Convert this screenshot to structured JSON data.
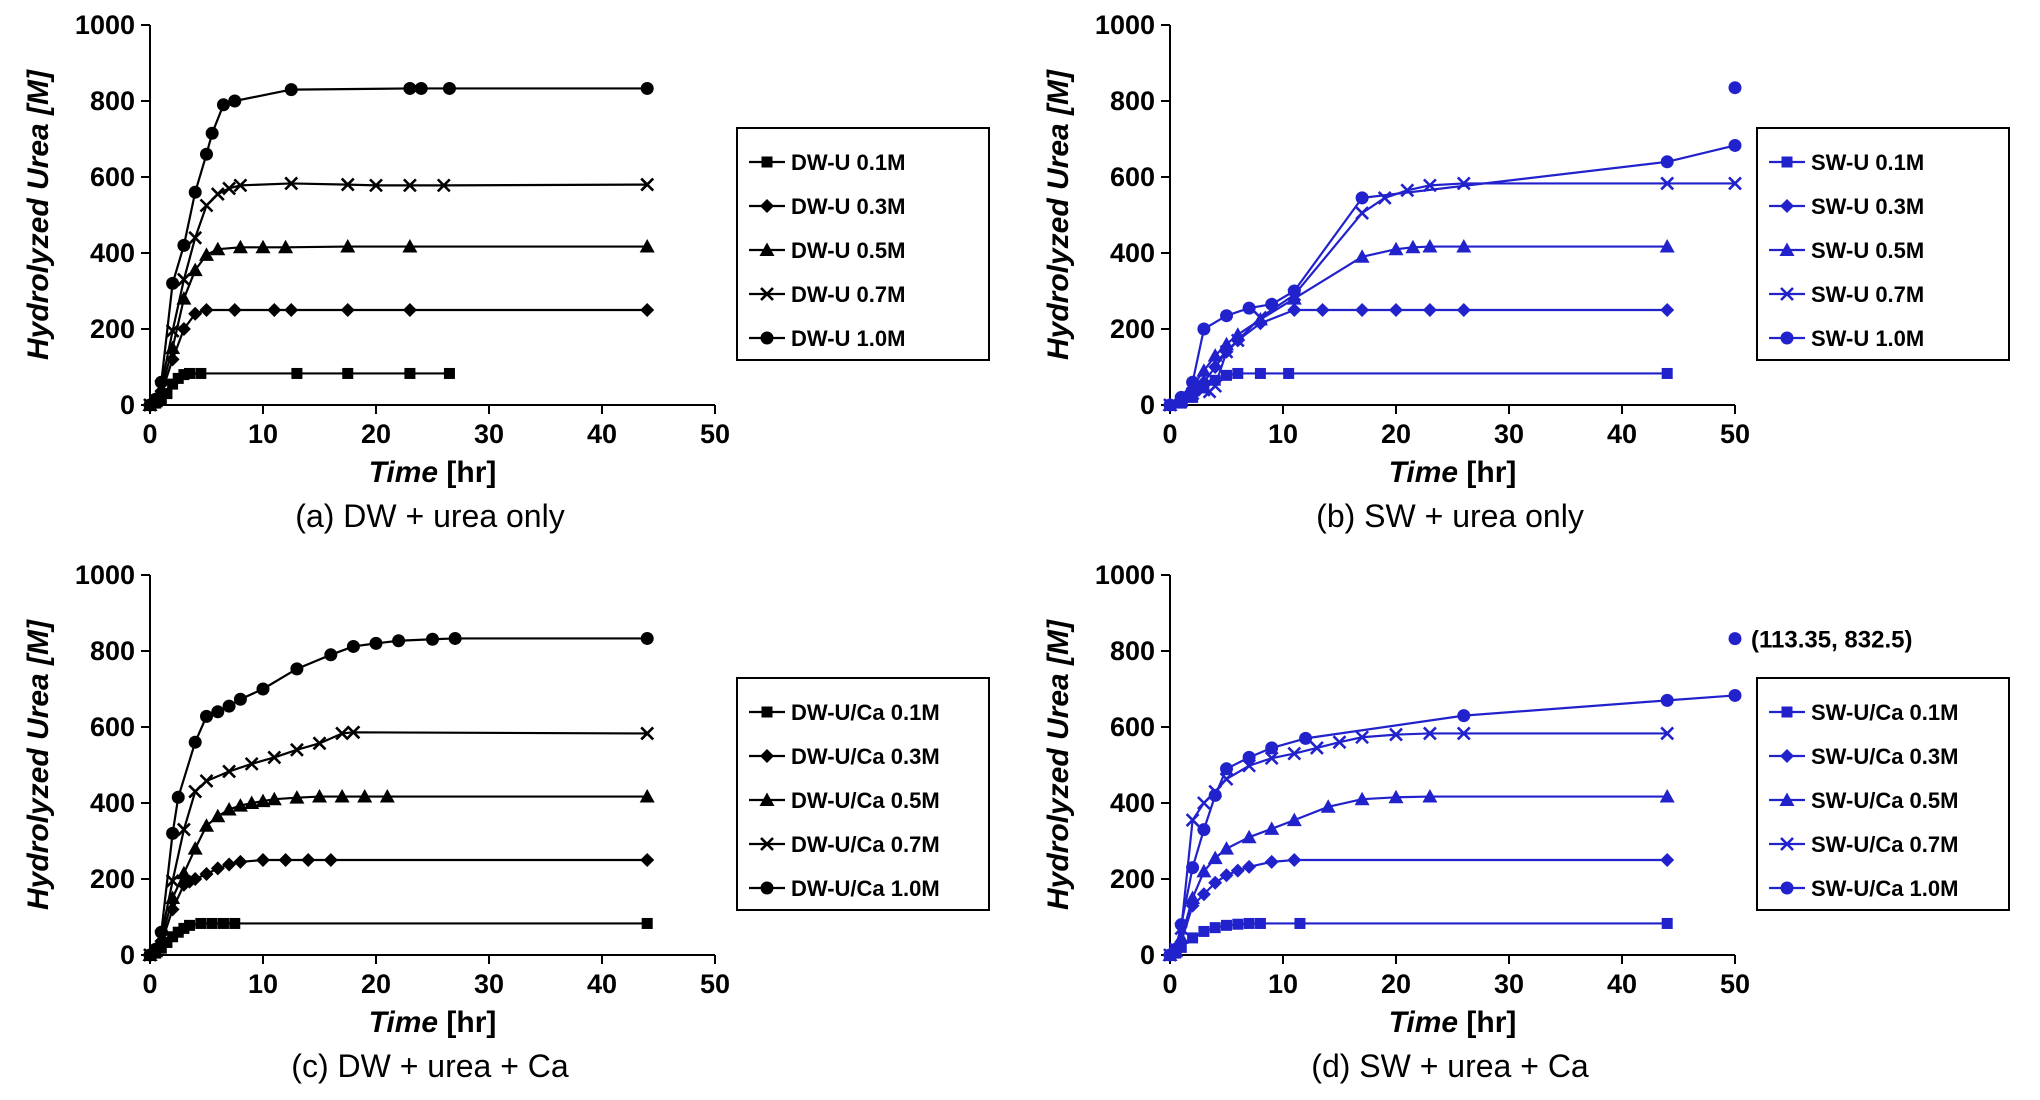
{
  "chart_data": [
    {
      "id": "a",
      "type": "line",
      "caption": "(a)  DW + urea only",
      "color": "#000000",
      "ylabel": "Hydrolyzed Urea [M]",
      "xlabel": {
        "italic": "Time",
        "rest": " [hr]"
      },
      "xlim": [
        0,
        50
      ],
      "ylim": [
        0,
        1000
      ],
      "xticks": [
        0,
        10,
        20,
        30,
        40,
        50
      ],
      "yticks": [
        0,
        200,
        400,
        600,
        800,
        1000
      ],
      "series": [
        {
          "name": "DW-U 0.1M",
          "marker": "square",
          "x": [
            0,
            0.5,
            1,
            1.5,
            2,
            2.5,
            3,
            3.5,
            4.5,
            13,
            17.5,
            23,
            26.5
          ],
          "y": [
            0,
            5,
            15,
            30,
            55,
            70,
            80,
            83,
            83,
            83,
            83,
            83,
            83
          ]
        },
        {
          "name": "DW-U 0.3M",
          "marker": "diamond",
          "x": [
            0,
            0.5,
            1,
            2,
            3,
            4,
            5,
            7.5,
            11,
            12.5,
            17.5,
            23,
            44
          ],
          "y": [
            0,
            8,
            30,
            120,
            200,
            240,
            250,
            250,
            250,
            250,
            250,
            250,
            250
          ]
        },
        {
          "name": "DW-U 0.5M",
          "marker": "triangle",
          "x": [
            0,
            0.5,
            1,
            2,
            3,
            4,
            5,
            6,
            8,
            10,
            12,
            17.5,
            23,
            44
          ],
          "y": [
            0,
            10,
            40,
            150,
            280,
            355,
            395,
            410,
            415,
            415,
            415,
            417,
            417,
            417
          ]
        },
        {
          "name": "DW-U 0.7M",
          "marker": "x",
          "x": [
            0,
            0.5,
            1,
            2,
            3,
            4,
            5,
            6,
            7,
            8,
            12.5,
            17.5,
            20,
            23,
            26,
            44
          ],
          "y": [
            0,
            12,
            50,
            195,
            330,
            440,
            525,
            555,
            570,
            578,
            583,
            580,
            578,
            578,
            578,
            580
          ]
        },
        {
          "name": "DW-U 1.0M",
          "marker": "circle",
          "x": [
            0,
            0.5,
            1,
            2,
            3,
            4,
            5,
            5.5,
            6.5,
            7.5,
            12.5,
            23,
            24,
            26.5,
            44
          ],
          "y": [
            0,
            15,
            60,
            320,
            420,
            560,
            660,
            715,
            790,
            800,
            830,
            833,
            833,
            833,
            833
          ]
        }
      ]
    },
    {
      "id": "b",
      "type": "line",
      "caption": "(b)  SW + urea only",
      "color": "#2222cc",
      "ylabel": "Hydrolyzed Urea [M]",
      "xlabel": {
        "italic": "Time",
        "rest": " [hr]"
      },
      "xlim": [
        0,
        50
      ],
      "ylim": [
        0,
        1000
      ],
      "xticks": [
        0,
        10,
        20,
        30,
        40,
        50
      ],
      "yticks": [
        0,
        200,
        400,
        600,
        800,
        1000
      ],
      "series": [
        {
          "name": "SW-U 0.1M",
          "marker": "square",
          "x": [
            0,
            1,
            2,
            3,
            4,
            5,
            6,
            8,
            10.5,
            44
          ],
          "y": [
            0,
            5,
            20,
            45,
            65,
            78,
            83,
            83,
            83,
            83
          ]
        },
        {
          "name": "SW-U 0.3M",
          "marker": "diamond",
          "x": [
            0,
            1,
            2,
            3,
            4,
            5,
            6,
            8,
            11,
            13.5,
            17,
            20,
            23,
            26,
            44
          ],
          "y": [
            0,
            10,
            35,
            60,
            100,
            140,
            170,
            215,
            250,
            250,
            250,
            250,
            250,
            250,
            250
          ]
        },
        {
          "name": "SW-U 0.5M",
          "marker": "triangle",
          "x": [
            0,
            1,
            2,
            3,
            4,
            5,
            6,
            8,
            11,
            17,
            20,
            21.5,
            23,
            26,
            44
          ],
          "y": [
            0,
            15,
            50,
            90,
            130,
            160,
            185,
            225,
            280,
            390,
            410,
            415,
            417,
            417,
            417
          ]
        },
        {
          "name": "SW-U 0.7M",
          "marker": "x",
          "x": [
            0,
            1,
            2,
            3,
            3.5,
            4,
            5,
            6,
            8,
            11,
            17,
            19,
            21,
            23,
            26,
            44,
            50
          ],
          "y": [
            0,
            10,
            30,
            40,
            35,
            50,
            140,
            170,
            230,
            290,
            505,
            545,
            565,
            578,
            583,
            583,
            583
          ]
        },
        {
          "name": "SW-U 1.0M",
          "marker": "circle",
          "x": [
            0,
            1,
            2,
            3,
            5,
            7,
            9,
            11,
            17,
            44,
            50
          ],
          "y": [
            0,
            20,
            60,
            200,
            235,
            255,
            265,
            300,
            545,
            640,
            683
          ]
        }
      ],
      "extra_points": [
        {
          "x": 50,
          "y": 835,
          "marker": "circle"
        }
      ]
    },
    {
      "id": "c",
      "type": "line",
      "caption": "(c)  DW + urea + Ca",
      "color": "#000000",
      "ylabel": "Hydrolyzed Urea [M]",
      "xlabel": {
        "italic": "Time",
        "rest": " [hr]"
      },
      "xlim": [
        0,
        50
      ],
      "ylim": [
        0,
        1000
      ],
      "xticks": [
        0,
        10,
        20,
        30,
        40,
        50
      ],
      "yticks": [
        0,
        200,
        400,
        600,
        800,
        1000
      ],
      "series": [
        {
          "name": "DW-U/Ca 0.1M",
          "marker": "square",
          "x": [
            0,
            0.5,
            1,
            1.5,
            2,
            2.5,
            3,
            3.5,
            4.5,
            5.5,
            6.5,
            7.5,
            44
          ],
          "y": [
            0,
            5,
            18,
            33,
            48,
            60,
            70,
            78,
            83,
            83,
            83,
            83,
            83
          ]
        },
        {
          "name": "DW-U/Ca 0.3M",
          "marker": "diamond",
          "x": [
            0,
            0.5,
            1,
            2,
            3,
            3.5,
            4,
            5,
            6,
            7,
            8,
            10,
            12,
            14,
            16,
            44
          ],
          "y": [
            0,
            8,
            30,
            120,
            185,
            193,
            200,
            213,
            228,
            238,
            245,
            250,
            250,
            250,
            250,
            250
          ]
        },
        {
          "name": "DW-U/Ca 0.5M",
          "marker": "triangle",
          "x": [
            0,
            0.5,
            1,
            2,
            3,
            4,
            5,
            6,
            7,
            8,
            9,
            10,
            11,
            13,
            15,
            17,
            19,
            21,
            44
          ],
          "y": [
            0,
            10,
            40,
            150,
            215,
            280,
            340,
            365,
            383,
            393,
            400,
            405,
            410,
            414,
            417,
            417,
            417,
            417,
            417
          ]
        },
        {
          "name": "DW-U/Ca 0.7M",
          "marker": "x",
          "x": [
            0,
            0.5,
            1,
            2,
            3,
            4,
            5,
            7,
            9,
            11,
            13,
            15,
            17,
            18,
            44
          ],
          "y": [
            0,
            12,
            50,
            195,
            330,
            430,
            458,
            483,
            503,
            520,
            540,
            557,
            583,
            586,
            583
          ]
        },
        {
          "name": "DW-U/Ca 1.0M",
          "marker": "circle",
          "x": [
            0,
            0.5,
            1,
            2,
            2.5,
            4,
            5,
            6,
            7,
            8,
            10,
            13,
            16,
            18,
            20,
            22,
            25,
            27,
            44
          ],
          "y": [
            0,
            15,
            60,
            320,
            415,
            560,
            628,
            640,
            655,
            673,
            700,
            753,
            790,
            812,
            820,
            827,
            831,
            833,
            833
          ]
        }
      ]
    },
    {
      "id": "d",
      "type": "line",
      "caption": "(d)  SW + urea + Ca",
      "color": "#2222cc",
      "ylabel": "Hydrolyzed Urea [M]",
      "xlabel": {
        "italic": "Time",
        "rest": " [hr]"
      },
      "xlim": [
        0,
        50
      ],
      "ylim": [
        0,
        1000
      ],
      "xticks": [
        0,
        10,
        20,
        30,
        40,
        50
      ],
      "yticks": [
        0,
        200,
        400,
        600,
        800,
        1000
      ],
      "series": [
        {
          "name": "SW-U/Ca 0.1M",
          "marker": "square",
          "x": [
            0,
            0.5,
            1,
            2,
            3,
            4,
            5,
            6,
            7,
            8,
            11.5,
            44
          ],
          "y": [
            0,
            5,
            20,
            45,
            62,
            72,
            78,
            81,
            83,
            83,
            83,
            83
          ]
        },
        {
          "name": "SW-U/Ca 0.3M",
          "marker": "diamond",
          "x": [
            0,
            0.5,
            1,
            2,
            3,
            4,
            5,
            6,
            7,
            9,
            11,
            44
          ],
          "y": [
            0,
            8,
            35,
            130,
            160,
            190,
            210,
            222,
            232,
            245,
            250,
            250
          ]
        },
        {
          "name": "SW-U/Ca 0.5M",
          "marker": "triangle",
          "x": [
            0,
            0.5,
            1,
            2,
            3,
            4,
            5,
            7,
            9,
            11,
            14,
            17,
            20,
            23,
            44
          ],
          "y": [
            0,
            10,
            45,
            150,
            220,
            255,
            280,
            310,
            332,
            355,
            390,
            410,
            415,
            417,
            417
          ]
        },
        {
          "name": "SW-U/Ca 0.7M",
          "marker": "x",
          "x": [
            0,
            0.5,
            1,
            2,
            3,
            4,
            5,
            7,
            9,
            11,
            13,
            15,
            17,
            20,
            23,
            26,
            44
          ],
          "y": [
            0,
            15,
            70,
            355,
            400,
            430,
            463,
            498,
            518,
            530,
            545,
            560,
            573,
            580,
            583,
            583,
            583
          ]
        },
        {
          "name": "SW-U/Ca 1.0M",
          "marker": "circle",
          "x": [
            0,
            0.5,
            1,
            2,
            3,
            4,
            5,
            7,
            9,
            12,
            26,
            44,
            50
          ],
          "y": [
            0,
            15,
            80,
            230,
            330,
            420,
            490,
            520,
            545,
            570,
            630,
            670,
            683
          ]
        }
      ],
      "extra_points": [
        {
          "x": 50,
          "y": 832.5,
          "marker": "circle"
        }
      ],
      "annotation": {
        "text": "(113.35, 832.5)",
        "x": 50,
        "y": 832.5
      }
    }
  ]
}
